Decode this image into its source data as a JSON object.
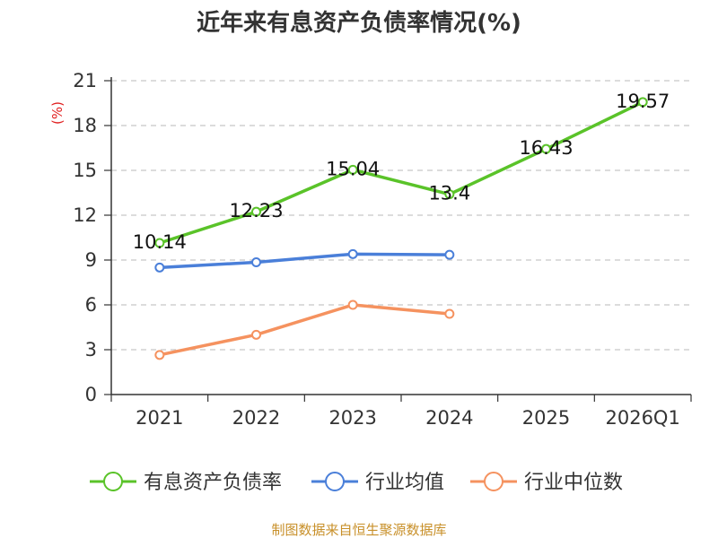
{
  "title": "近年来有息资产负债率情况(%)",
  "source": "制图数据来自恒生聚源数据库",
  "colors": {
    "debt_ratio": "#5ac329",
    "industry_avg": "#4a7fd9",
    "industry_median": "#f5925f",
    "ylabel": "#e01f1f",
    "source": "#c8902a"
  },
  "chart_data": {
    "type": "line",
    "title": "近年来有息资产负债率情况(%)",
    "ylabel": "(%)",
    "xlabel": "",
    "categories": [
      "2021",
      "2022",
      "2023",
      "2024",
      "2025",
      "2026Q1"
    ],
    "ylim": [
      0,
      21
    ],
    "yticks": [
      0,
      3,
      6,
      9,
      12,
      15,
      18,
      21
    ],
    "grid": true,
    "legend_position": "bottom",
    "series": [
      {
        "name": "有息资产负债率",
        "color_key": "debt_ratio",
        "values": [
          10.14,
          12.23,
          15.04,
          13.4,
          16.43,
          19.57
        ],
        "labels": [
          "10.14",
          "12.23",
          "15.04",
          "13.4",
          "16.43",
          "19.57"
        ]
      },
      {
        "name": "行业均值",
        "color_key": "industry_avg",
        "values": [
          8.5,
          8.85,
          9.4,
          9.35,
          null,
          null
        ]
      },
      {
        "name": "行业中位数",
        "color_key": "industry_median",
        "values": [
          2.65,
          4.0,
          6.0,
          5.4,
          null,
          null
        ]
      }
    ]
  }
}
